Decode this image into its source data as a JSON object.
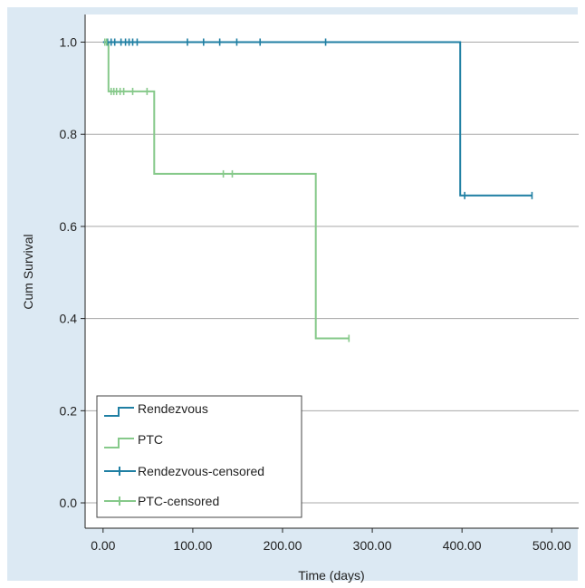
{
  "chart_data": {
    "type": "line",
    "xlabel": "Time (days)",
    "ylabel": "Cum Survival",
    "xlim": [
      -20,
      530
    ],
    "ylim": [
      -0.055,
      1.06
    ],
    "x_ticks": [
      "0.00",
      "100.00",
      "200.00",
      "300.00",
      "400.00",
      "500.00"
    ],
    "y_ticks": [
      "0.0",
      "0.2",
      "0.4",
      "0.6",
      "0.8",
      "1.0"
    ],
    "x_tick_values": [
      0,
      100,
      200,
      300,
      400,
      500
    ],
    "y_tick_values": [
      0,
      0.2,
      0.4,
      0.6,
      0.8,
      1.0
    ],
    "grid": "horizontal",
    "legend_position": "bottom-left",
    "colors": {
      "rendezvous": "#1f7fa3",
      "ptc": "#86c98a",
      "background": "#dce9f3"
    },
    "series": [
      {
        "name": "Rendezvous",
        "kind": "step",
        "steps": [
          [
            0,
            1.0
          ],
          [
            398,
            1.0
          ],
          [
            398,
            0.667
          ],
          [
            478,
            0.667
          ]
        ]
      },
      {
        "name": "PTC",
        "kind": "step",
        "steps": [
          [
            0,
            1.0
          ],
          [
            6,
            1.0
          ],
          [
            6,
            0.893
          ],
          [
            57,
            0.893
          ],
          [
            57,
            0.714
          ],
          [
            237,
            0.714
          ],
          [
            237,
            0.357
          ],
          [
            274,
            0.357
          ]
        ]
      },
      {
        "name": "Rendezvous-censored",
        "kind": "censor",
        "points": [
          [
            5,
            1.0
          ],
          [
            9,
            1.0
          ],
          [
            13,
            1.0
          ],
          [
            20,
            1.0
          ],
          [
            25,
            1.0
          ],
          [
            29,
            1.0
          ],
          [
            33,
            1.0
          ],
          [
            38,
            1.0
          ],
          [
            94,
            1.0
          ],
          [
            112,
            1.0
          ],
          [
            130,
            1.0
          ],
          [
            149,
            1.0
          ],
          [
            175,
            1.0
          ],
          [
            248,
            1.0
          ],
          [
            403,
            0.667
          ],
          [
            478,
            0.667
          ]
        ]
      },
      {
        "name": "PTC-censored",
        "kind": "censor",
        "points": [
          [
            2,
            1.0
          ],
          [
            4,
            1.0
          ],
          [
            9,
            0.893
          ],
          [
            12,
            0.893
          ],
          [
            15,
            0.893
          ],
          [
            19,
            0.893
          ],
          [
            23,
            0.893
          ],
          [
            33,
            0.893
          ],
          [
            49,
            0.893
          ],
          [
            134,
            0.714
          ],
          [
            144,
            0.714
          ],
          [
            274,
            0.357
          ]
        ]
      }
    ],
    "legend": [
      "Rendezvous",
      "PTC",
      "Rendezvous-censored",
      "PTC-censored"
    ]
  }
}
